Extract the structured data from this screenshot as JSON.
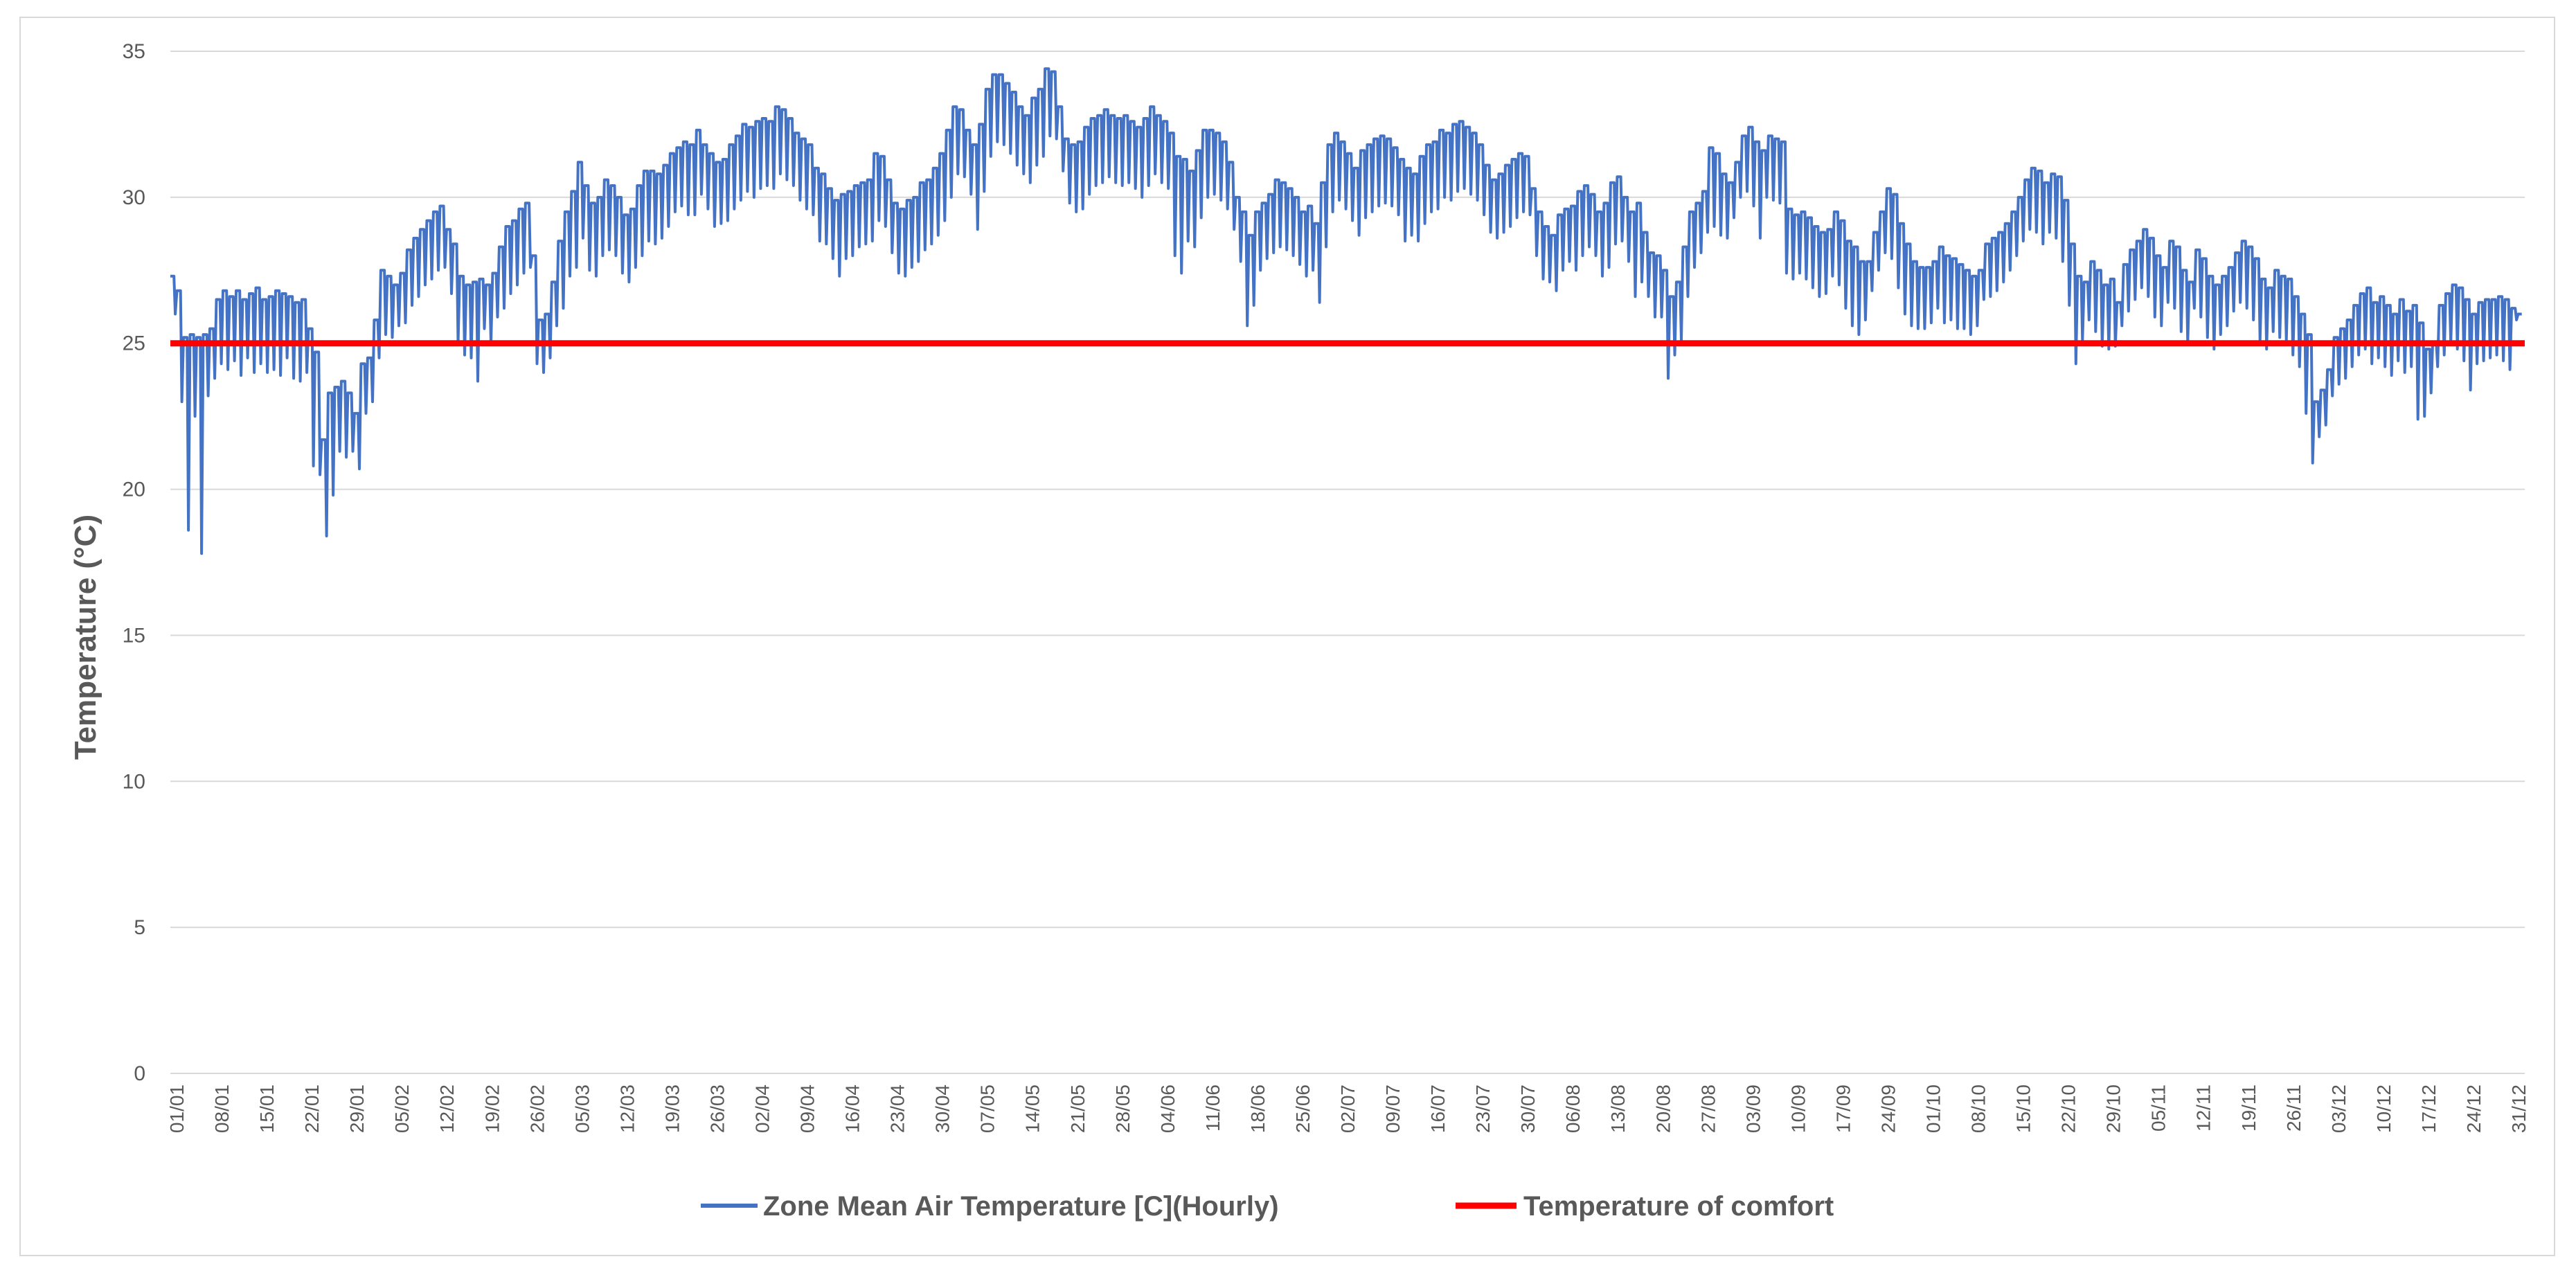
{
  "chart_data": {
    "type": "line",
    "title": "",
    "xlabel": "",
    "ylabel": "Temperature (°C)",
    "ylim": [
      0,
      35
    ],
    "yticks": [
      "0",
      "5",
      "10",
      "15",
      "20",
      "25",
      "30",
      "35"
    ],
    "grid": "horizontal",
    "legend_position": "bottom",
    "x_tick_labels": [
      "01/01",
      "08/01",
      "15/01",
      "22/01",
      "29/01",
      "05/02",
      "12/02",
      "19/02",
      "26/02",
      "05/03",
      "12/03",
      "19/03",
      "26/03",
      "02/04",
      "09/04",
      "16/04",
      "23/04",
      "30/04",
      "07/05",
      "14/05",
      "21/05",
      "28/05",
      "04/06",
      "11/06",
      "18/06",
      "25/06",
      "02/07",
      "09/07",
      "16/07",
      "23/07",
      "30/07",
      "06/08",
      "13/08",
      "20/08",
      "27/08",
      "03/09",
      "10/09",
      "17/09",
      "24/09",
      "01/10",
      "08/10",
      "15/10",
      "22/10",
      "29/10",
      "05/11",
      "12/11",
      "19/11",
      "26/11",
      "03/12",
      "10/12",
      "17/12",
      "24/12",
      "31/12"
    ],
    "series": [
      {
        "name": "Zone Mean Air Temperature [C](Hourly)",
        "color": "#4472c4",
        "unit": "°C",
        "daily_max": [
          27.3,
          26.8,
          25.2,
          25.3,
          25.2,
          25.3,
          25.5,
          26.5,
          26.8,
          26.6,
          26.8,
          26.5,
          26.7,
          26.9,
          26.5,
          26.6,
          26.8,
          26.7,
          26.6,
          26.4,
          26.5,
          25.5,
          24.7,
          21.7,
          23.3,
          23.5,
          23.7,
          23.3,
          22.6,
          24.3,
          24.5,
          25.8,
          27.5,
          27.3,
          27.0,
          27.4,
          28.2,
          28.6,
          28.9,
          29.2,
          29.5,
          29.7,
          28.9,
          28.4,
          27.3,
          27.0,
          27.1,
          27.2,
          27.0,
          27.4,
          28.3,
          29.0,
          29.2,
          29.6,
          29.8,
          28.0,
          25.8,
          26.0,
          27.1,
          28.5,
          29.5,
          30.2,
          31.2,
          30.4,
          29.8,
          30.0,
          30.6,
          30.4,
          30.0,
          29.4,
          29.6,
          30.4,
          30.9,
          30.9,
          30.8,
          31.1,
          31.5,
          31.7,
          31.9,
          31.8,
          32.3,
          31.8,
          31.5,
          31.2,
          31.3,
          31.8,
          32.1,
          32.5,
          32.4,
          32.6,
          32.7,
          32.6,
          33.1,
          33.0,
          32.7,
          32.2,
          32.0,
          31.8,
          31.0,
          30.8,
          30.3,
          29.9,
          30.1,
          30.2,
          30.4,
          30.5,
          30.6,
          31.5,
          31.4,
          30.6,
          29.8,
          29.6,
          29.9,
          30.0,
          30.5,
          30.6,
          31.0,
          31.5,
          32.3,
          33.1,
          33.0,
          32.3,
          31.8,
          32.5,
          33.7,
          34.2,
          34.2,
          33.9,
          33.6,
          33.1,
          32.8,
          33.4,
          33.7,
          34.4,
          34.3,
          33.1,
          32.0,
          31.8,
          31.9,
          32.4,
          32.7,
          32.8,
          33.0,
          32.8,
          32.7,
          32.8,
          32.6,
          32.4,
          32.7,
          33.1,
          32.8,
          32.6,
          32.2,
          31.4,
          31.3,
          30.9,
          31.6,
          32.3,
          32.3,
          32.2,
          31.9,
          31.2,
          30.0,
          29.5,
          28.7,
          29.5,
          29.8,
          30.1,
          30.6,
          30.5,
          30.3,
          30.0,
          29.5,
          29.7,
          29.1,
          30.5,
          31.8,
          32.2,
          31.9,
          31.5,
          31.0,
          31.6,
          31.8,
          32.0,
          32.1,
          32.0,
          31.7,
          31.3,
          31.0,
          30.8,
          31.4,
          31.8,
          31.9,
          32.3,
          32.2,
          32.5,
          32.6,
          32.4,
          32.2,
          31.8,
          31.1,
          30.6,
          30.8,
          31.1,
          31.3,
          31.5,
          31.4,
          30.3,
          29.5,
          29.0,
          28.7,
          29.4,
          29.6,
          29.7,
          30.2,
          30.4,
          30.1,
          29.5,
          29.8,
          30.5,
          30.7,
          30.0,
          29.5,
          29.8,
          28.8,
          28.1,
          28.0,
          27.5,
          26.6,
          27.1,
          28.3,
          29.5,
          29.8,
          30.2,
          31.7,
          31.5,
          30.8,
          30.5,
          31.2,
          32.1,
          32.4,
          31.9,
          31.6,
          32.1,
          32.0,
          31.9,
          29.6,
          29.4,
          29.5,
          29.3,
          29.0,
          28.8,
          28.9,
          29.5,
          29.2,
          28.5,
          28.3,
          27.8,
          27.8,
          28.8,
          29.5,
          30.3,
          30.1,
          29.1,
          28.4,
          27.8,
          27.6,
          27.6,
          27.8,
          28.3,
          28.0,
          27.9,
          27.7,
          27.5,
          27.3,
          27.5,
          28.4,
          28.6,
          28.8,
          29.1,
          29.5,
          30.0,
          30.6,
          31.0,
          30.9,
          30.5,
          30.8,
          30.7,
          29.9,
          28.4,
          27.3,
          27.1,
          27.8,
          27.5,
          27.0,
          27.2,
          26.4,
          27.7,
          28.2,
          28.5,
          28.9,
          28.6,
          28.0,
          27.6,
          28.5,
          28.3,
          27.5,
          27.1,
          28.2,
          27.9,
          27.3,
          27.0,
          27.3,
          27.6,
          28.1,
          28.5,
          28.3,
          27.9,
          27.2,
          26.9,
          27.5,
          27.3,
          27.2,
          26.6,
          26.0,
          25.3,
          23.0,
          23.4,
          24.1,
          25.2,
          25.5,
          25.8,
          26.3,
          26.7,
          26.9,
          26.4,
          26.6,
          26.3,
          26.0,
          26.5,
          26.1,
          26.3,
          25.7,
          24.8,
          25.0,
          26.3,
          26.7,
          27.0,
          26.9,
          26.5,
          26.0,
          26.4,
          26.5,
          26.5,
          26.6,
          26.5,
          26.2,
          26.0
        ],
        "daily_min": [
          26.0,
          23.0,
          18.6,
          22.5,
          17.8,
          23.2,
          23.8,
          24.3,
          24.1,
          24.4,
          23.9,
          24.5,
          24.0,
          24.3,
          24.0,
          24.1,
          23.9,
          24.5,
          23.8,
          23.7,
          24.0,
          20.8,
          20.5,
          18.4,
          19.8,
          21.3,
          21.1,
          21.3,
          20.7,
          22.6,
          23.0,
          24.5,
          25.3,
          25.2,
          25.6,
          25.7,
          26.3,
          26.6,
          27.0,
          27.2,
          27.5,
          27.6,
          26.7,
          25.0,
          24.6,
          24.5,
          23.7,
          25.5,
          25.0,
          25.9,
          26.2,
          26.7,
          27.0,
          27.4,
          27.6,
          24.3,
          24.0,
          24.5,
          25.6,
          26.2,
          27.3,
          27.6,
          28.6,
          27.5,
          27.3,
          28.0,
          28.2,
          28.0,
          27.4,
          27.1,
          27.6,
          28.0,
          28.5,
          28.4,
          28.6,
          29.0,
          29.5,
          29.7,
          29.4,
          29.4,
          30.1,
          29.6,
          29.0,
          29.1,
          29.2,
          29.6,
          29.9,
          30.2,
          30.0,
          30.3,
          30.4,
          30.3,
          30.8,
          30.6,
          30.4,
          29.9,
          29.6,
          29.4,
          28.5,
          28.4,
          27.9,
          27.3,
          27.9,
          28.0,
          28.3,
          28.4,
          28.5,
          29.2,
          29.0,
          28.1,
          27.4,
          27.3,
          27.6,
          27.8,
          28.2,
          28.4,
          28.7,
          29.2,
          30.0,
          30.8,
          30.7,
          30.1,
          28.9,
          30.2,
          31.4,
          31.9,
          31.8,
          31.5,
          31.1,
          30.8,
          30.5,
          31.1,
          31.4,
          32.1,
          32.0,
          30.9,
          29.8,
          29.5,
          29.6,
          30.1,
          30.4,
          30.5,
          30.7,
          30.5,
          30.4,
          30.5,
          30.3,
          30.0,
          30.4,
          30.8,
          30.5,
          30.3,
          28.0,
          27.4,
          28.5,
          28.3,
          29.3,
          30.0,
          30.1,
          29.9,
          29.6,
          28.9,
          27.8,
          25.6,
          26.3,
          27.5,
          27.9,
          28.1,
          28.3,
          28.2,
          28.0,
          27.7,
          27.3,
          27.5,
          26.4,
          28.3,
          29.5,
          29.9,
          29.6,
          29.2,
          28.7,
          29.3,
          29.5,
          29.7,
          29.8,
          29.7,
          29.4,
          28.5,
          28.7,
          28.5,
          29.1,
          29.5,
          29.6,
          30.0,
          29.9,
          30.2,
          30.3,
          30.1,
          29.9,
          29.4,
          28.8,
          28.6,
          28.8,
          29.0,
          29.3,
          29.5,
          29.4,
          28.0,
          27.2,
          27.1,
          26.8,
          27.5,
          27.8,
          27.5,
          28.0,
          28.3,
          28.0,
          27.3,
          27.6,
          28.4,
          28.5,
          27.8,
          26.6,
          27.1,
          26.6,
          25.9,
          25.9,
          23.8,
          24.6,
          25.1,
          26.6,
          27.6,
          28.1,
          28.8,
          29.0,
          28.7,
          28.6,
          29.3,
          30.0,
          30.2,
          29.7,
          28.6,
          30.0,
          29.9,
          29.8,
          27.4,
          27.2,
          27.4,
          27.2,
          26.9,
          26.6,
          26.7,
          27.3,
          27.0,
          26.2,
          25.6,
          25.3,
          25.8,
          26.8,
          27.5,
          28.1,
          27.9,
          26.9,
          26.0,
          25.6,
          25.5,
          25.5,
          25.7,
          26.2,
          25.7,
          25.8,
          25.5,
          25.5,
          25.3,
          25.6,
          26.5,
          26.6,
          26.8,
          27.1,
          27.5,
          28.0,
          28.5,
          28.9,
          28.8,
          28.4,
          28.8,
          28.6,
          27.8,
          26.3,
          24.3,
          25.1,
          25.8,
          25.4,
          24.9,
          24.8,
          24.9,
          25.6,
          26.1,
          26.5,
          26.9,
          26.6,
          25.9,
          25.6,
          26.4,
          26.2,
          25.4,
          25.0,
          26.2,
          25.9,
          25.2,
          24.8,
          25.3,
          25.6,
          26.1,
          26.4,
          26.2,
          25.8,
          25.1,
          24.8,
          25.4,
          25.2,
          25.1,
          24.6,
          24.2,
          22.6,
          20.9,
          21.8,
          22.2,
          23.2,
          23.6,
          23.8,
          24.2,
          24.6,
          24.8,
          24.3,
          24.5,
          24.2,
          23.9,
          24.4,
          24.0,
          24.2,
          22.4,
          22.5,
          23.3,
          24.2,
          24.6,
          25.0,
          24.8,
          24.4,
          23.4,
          24.3,
          24.4,
          24.5,
          24.6,
          24.4,
          24.1,
          25.8
        ]
      },
      {
        "name": "Temperature of comfort",
        "color": "#ff0000",
        "value": 25
      }
    ]
  }
}
